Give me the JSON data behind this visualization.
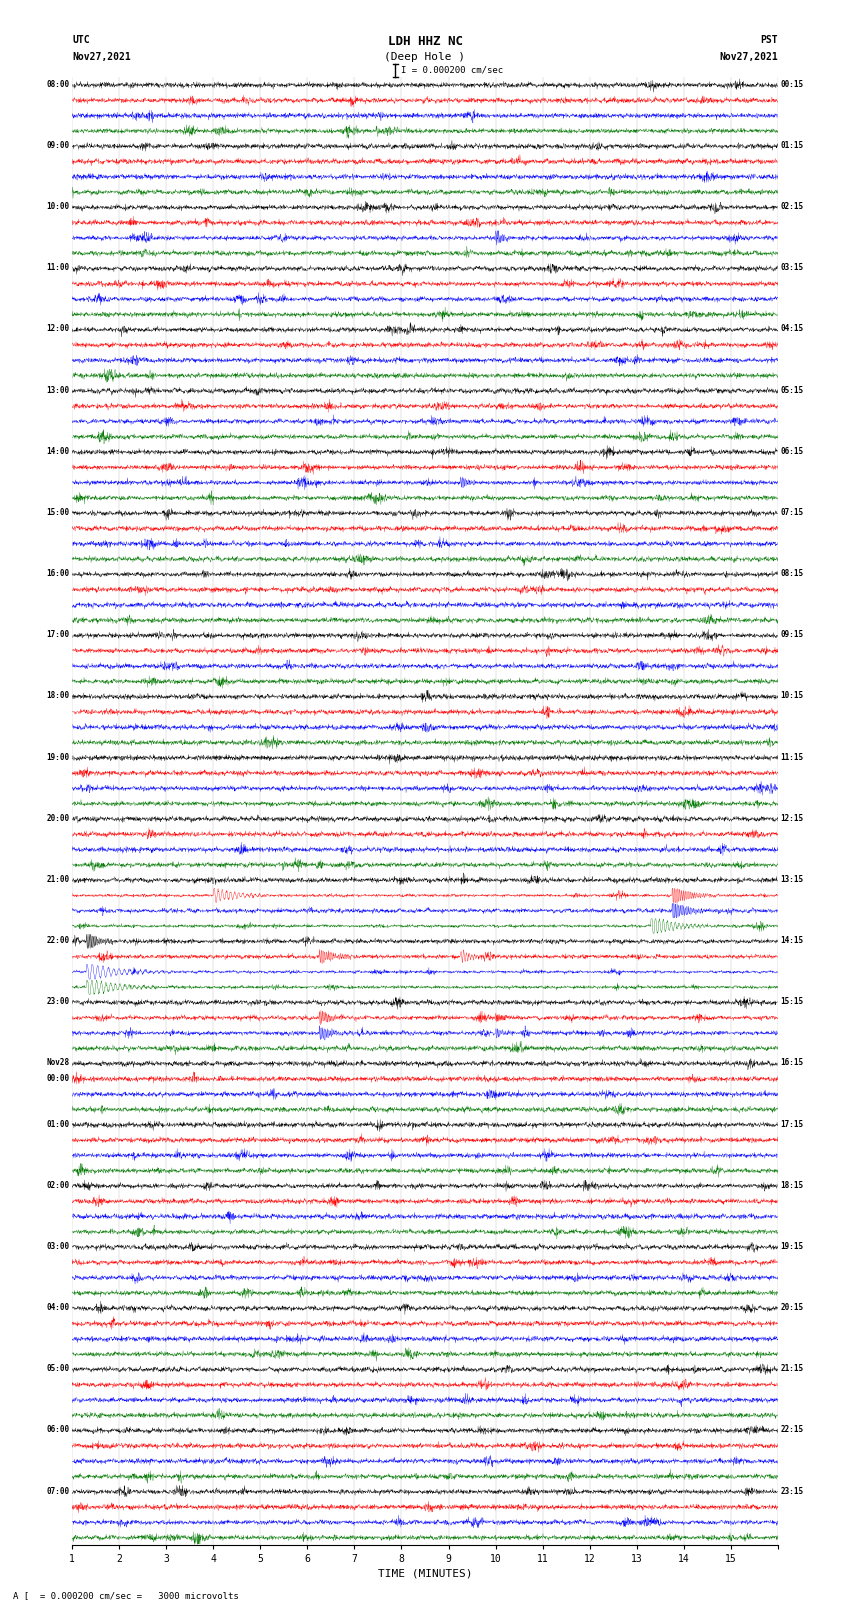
{
  "title_line1": "LDH HHZ NC",
  "title_line2": "(Deep Hole )",
  "scale_text": "I = 0.000200 cm/sec",
  "bottom_text": "A [  = 0.000200 cm/sec =   3000 microvolts",
  "utc_label": "UTC",
  "utc_date": "Nov27,2021",
  "pst_label": "PST",
  "pst_date": "Nov27,2021",
  "xlabel": "TIME (MINUTES)",
  "xmin": 0,
  "xmax": 15,
  "left_labels": [
    "08:00",
    "09:00",
    "10:00",
    "11:00",
    "12:00",
    "13:00",
    "14:00",
    "15:00",
    "16:00",
    "17:00",
    "18:00",
    "19:00",
    "20:00",
    "21:00",
    "22:00",
    "23:00",
    "Nov28\n00:00",
    "01:00",
    "02:00",
    "03:00",
    "04:00",
    "05:00",
    "06:00",
    "07:00"
  ],
  "right_labels": [
    "00:15",
    "01:15",
    "02:15",
    "03:15",
    "04:15",
    "05:15",
    "06:15",
    "07:15",
    "08:15",
    "09:15",
    "10:15",
    "11:15",
    "12:15",
    "13:15",
    "14:15",
    "15:15",
    "16:15",
    "17:15",
    "18:15",
    "19:15",
    "20:15",
    "21:15",
    "22:15",
    "23:15"
  ],
  "n_rows": 24,
  "traces_per_row": 4,
  "fig_width": 8.5,
  "fig_height": 16.13,
  "dpi": 100
}
